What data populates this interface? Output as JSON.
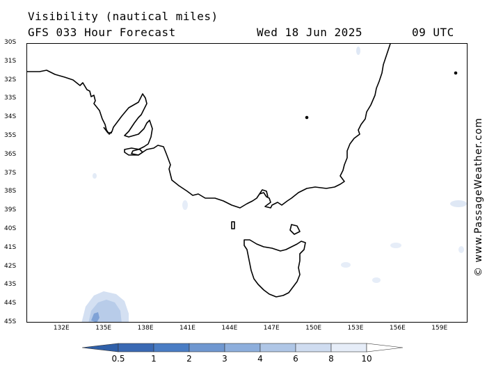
{
  "header": {
    "title": "Visibility (nautical miles)",
    "model": "GFS 033 Hour Forecast",
    "date": "Wed 18 Jun 2025",
    "time": "09 UTC"
  },
  "credit": "© www.PassageWeather.com",
  "map": {
    "lat_labels": [
      "30S",
      "31S",
      "32S",
      "33S",
      "34S",
      "35S",
      "36S",
      "37S",
      "38S",
      "39S",
      "40S",
      "41S",
      "42S",
      "43S",
      "44S",
      "45S"
    ],
    "lon_labels": [
      "132E",
      "135E",
      "138E",
      "141E",
      "144E",
      "147E",
      "150E",
      "153E",
      "156E",
      "159E"
    ],
    "lat_range": [
      -30,
      -45
    ],
    "lon_range": [
      129.5,
      161
    ],
    "coastline_color": "#000000"
  },
  "legend": {
    "labels": [
      "0.5",
      "1",
      "2",
      "3",
      "4",
      "6",
      "8",
      "10"
    ],
    "colors": [
      "#3a69b3",
      "#4a7dc4",
      "#6f97d0",
      "#8daedc",
      "#afc6e6",
      "#cfdcf0",
      "#e6edf8",
      "#ffffff"
    ]
  }
}
